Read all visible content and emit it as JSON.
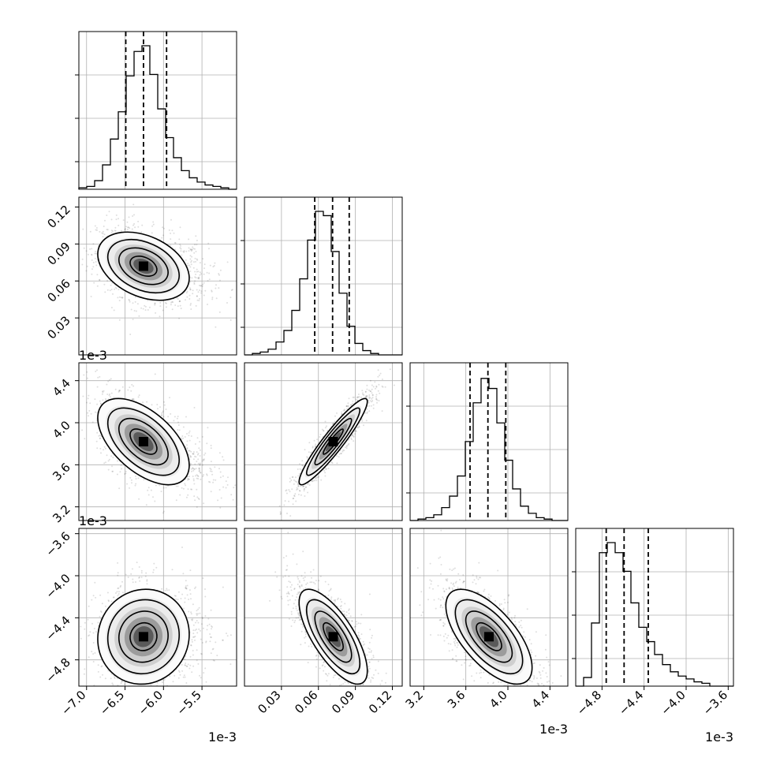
{
  "chart_data": {
    "type": "corner",
    "offset_label": "1e-3",
    "grid": true,
    "params": [
      {
        "id": "p0",
        "range": [
          -7.1,
          -5.05
        ],
        "ticks": [
          -7.0,
          -6.5,
          -6.0,
          -5.5
        ],
        "tick_labels": [
          "−7.0",
          "−6.5",
          "−6.0",
          "−5.5"
        ],
        "quantiles": [
          -6.49,
          -6.26,
          -5.96
        ]
      },
      {
        "id": "p1",
        "range": [
          0.0,
          0.128
        ],
        "ticks": [
          0.03,
          0.06,
          0.09,
          0.12
        ],
        "tick_labels": [
          "0.03",
          "0.06",
          "0.09",
          "0.12"
        ],
        "quantiles": [
          0.057,
          0.0715,
          0.085
        ]
      },
      {
        "id": "p2",
        "range": [
          3.07,
          4.57
        ],
        "ticks": [
          3.2,
          3.6,
          4.0,
          4.4
        ],
        "tick_labels": [
          "3.2",
          "3.6",
          "4.0",
          "4.4"
        ],
        "quantiles": [
          3.64,
          3.81,
          3.98
        ]
      },
      {
        "id": "p3",
        "range": [
          -5.05,
          -3.55
        ],
        "ticks": [
          -4.8,
          -4.4,
          -4.0,
          -3.6
        ],
        "tick_labels": [
          "−4.8",
          "−4.4",
          "−4.0",
          "−3.6"
        ],
        "quantiles": [
          -4.76,
          -4.59,
          -4.36
        ]
      }
    ],
    "histograms": [
      [
        1,
        2,
        6,
        17,
        35,
        54,
        79,
        96,
        100,
        80,
        56,
        36,
        22,
        13,
        8,
        5,
        3,
        2,
        1,
        0
      ],
      [
        0,
        1,
        2,
        4,
        9,
        17,
        31,
        53,
        80,
        100,
        97,
        72,
        43,
        20,
        8,
        3,
        1,
        0,
        0,
        0
      ],
      [
        0,
        1,
        2,
        4,
        9,
        17,
        31,
        55,
        82,
        99,
        92,
        68,
        42,
        22,
        10,
        5,
        2,
        1,
        0,
        0
      ],
      [
        0,
        6,
        44,
        93,
        100,
        93,
        80,
        58,
        41,
        31,
        22,
        15,
        10,
        7,
        5,
        3,
        2,
        0,
        0,
        0
      ]
    ],
    "pairs": [
      {
        "x": 0,
        "y": 1,
        "mean": [
          -6.26,
          0.072
        ],
        "sd": [
          0.29,
          0.0135
        ],
        "rho": -0.35
      },
      {
        "x": 0,
        "y": 2,
        "mean": [
          -6.26,
          3.82
        ],
        "sd": [
          0.29,
          0.2
        ],
        "rho": -0.55
      },
      {
        "x": 1,
        "y": 2,
        "mean": [
          0.072,
          3.82
        ],
        "sd": [
          0.0135,
          0.2
        ],
        "rho": 0.93
      },
      {
        "x": 0,
        "y": 3,
        "mean": [
          -6.26,
          -4.58
        ],
        "sd": [
          0.29,
          0.22
        ],
        "rho": 0.05
      },
      {
        "x": 1,
        "y": 3,
        "mean": [
          0.072,
          -4.58
        ],
        "sd": [
          0.0135,
          0.22
        ],
        "rho": -0.72
      },
      {
        "x": 2,
        "y": 3,
        "mean": [
          3.82,
          -4.58
        ],
        "sd": [
          0.2,
          0.22
        ],
        "rho": -0.65
      }
    ]
  }
}
